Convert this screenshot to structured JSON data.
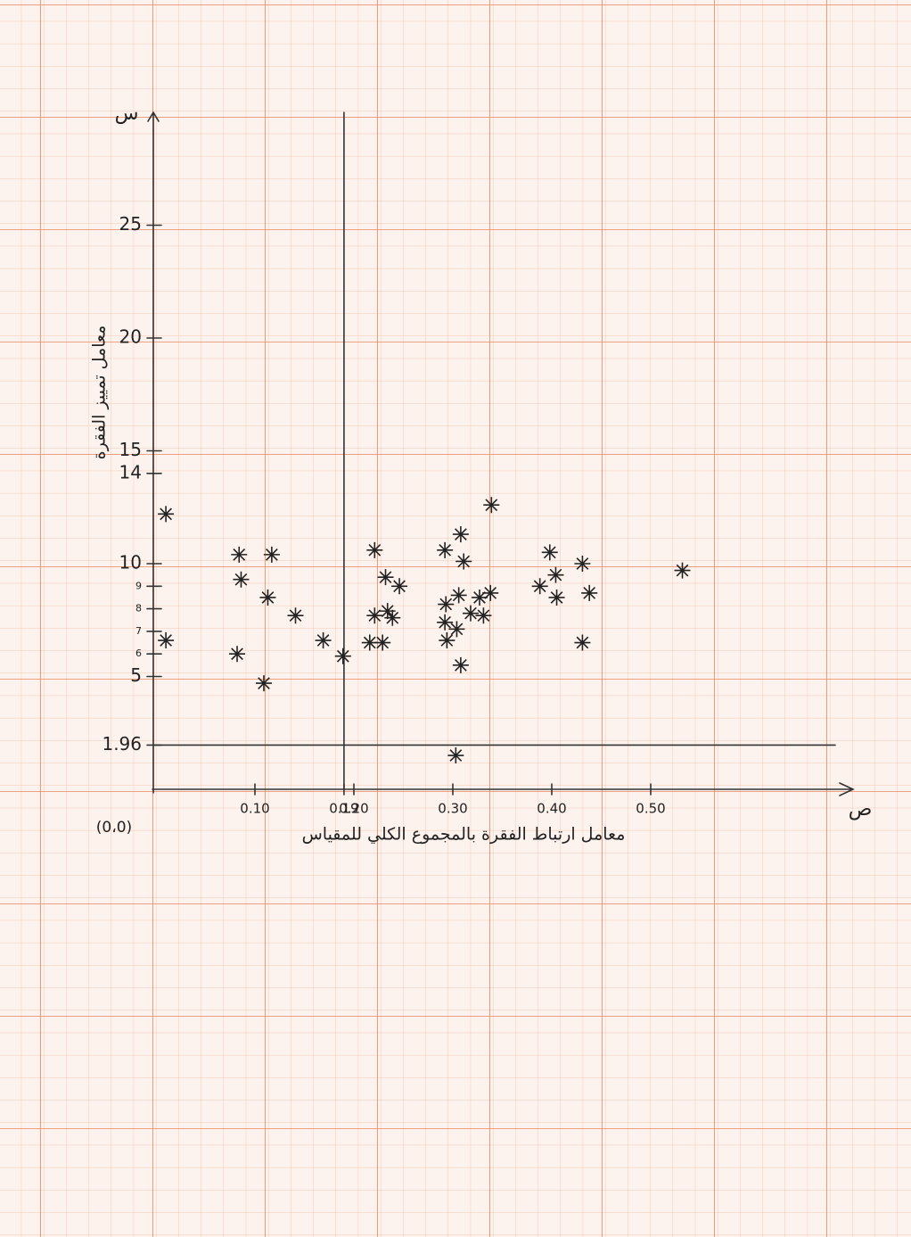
{
  "chart_data": {
    "type": "scatter",
    "x_label": "معامل ارتباط الفقرة بالمجموع الكلي للمقياس",
    "y_label": "معامل تمييز الفقرة",
    "x_axis_letter": "ص",
    "y_axis_letter": "س",
    "origin_label": "(0،0)",
    "xlim": [
      0,
      0.7
    ],
    "ylim": [
      0,
      30
    ],
    "xticks": [
      {
        "value": 0.1,
        "label": "0.10"
      },
      0.19,
      {
        "value": 0.2,
        "label": "0.20"
      },
      {
        "value": 0.3,
        "label": "0.30"
      },
      {
        "value": 0.4,
        "label": "0.40"
      },
      {
        "value": 0.5,
        "label": "0.50"
      }
    ],
    "yticks": [
      1.96,
      5,
      6,
      7,
      8,
      9,
      10,
      14,
      15,
      20,
      25
    ],
    "vlines": [
      0.19
    ],
    "hlines": [
      1.96
    ],
    "color": "#222222",
    "x": [
      0.01,
      0.01,
      0.084,
      0.086,
      0.117,
      0.113,
      0.082,
      0.109,
      0.141,
      0.169,
      0.189,
      0.221,
      0.232,
      0.246,
      0.221,
      0.234,
      0.239,
      0.216,
      0.229,
      0.292,
      0.308,
      0.311,
      0.339,
      0.293,
      0.306,
      0.292,
      0.304,
      0.294,
      0.308,
      0.318,
      0.327,
      0.338,
      0.331,
      0.303,
      0.398,
      0.404,
      0.388,
      0.405,
      0.431,
      0.438,
      0.431,
      0.532
    ],
    "values": [
      12.2,
      6.6,
      10.4,
      9.3,
      10.4,
      8.5,
      6.0,
      4.7,
      7.7,
      6.6,
      5.9,
      10.6,
      9.4,
      9.0,
      7.7,
      7.9,
      7.6,
      6.5,
      6.5,
      10.6,
      11.3,
      10.1,
      12.6,
      8.2,
      8.6,
      7.4,
      7.1,
      6.6,
      5.5,
      7.8,
      8.5,
      8.7,
      7.7,
      1.5,
      10.5,
      9.5,
      9.0,
      8.5,
      10.0,
      8.7,
      6.5,
      9.7
    ]
  }
}
